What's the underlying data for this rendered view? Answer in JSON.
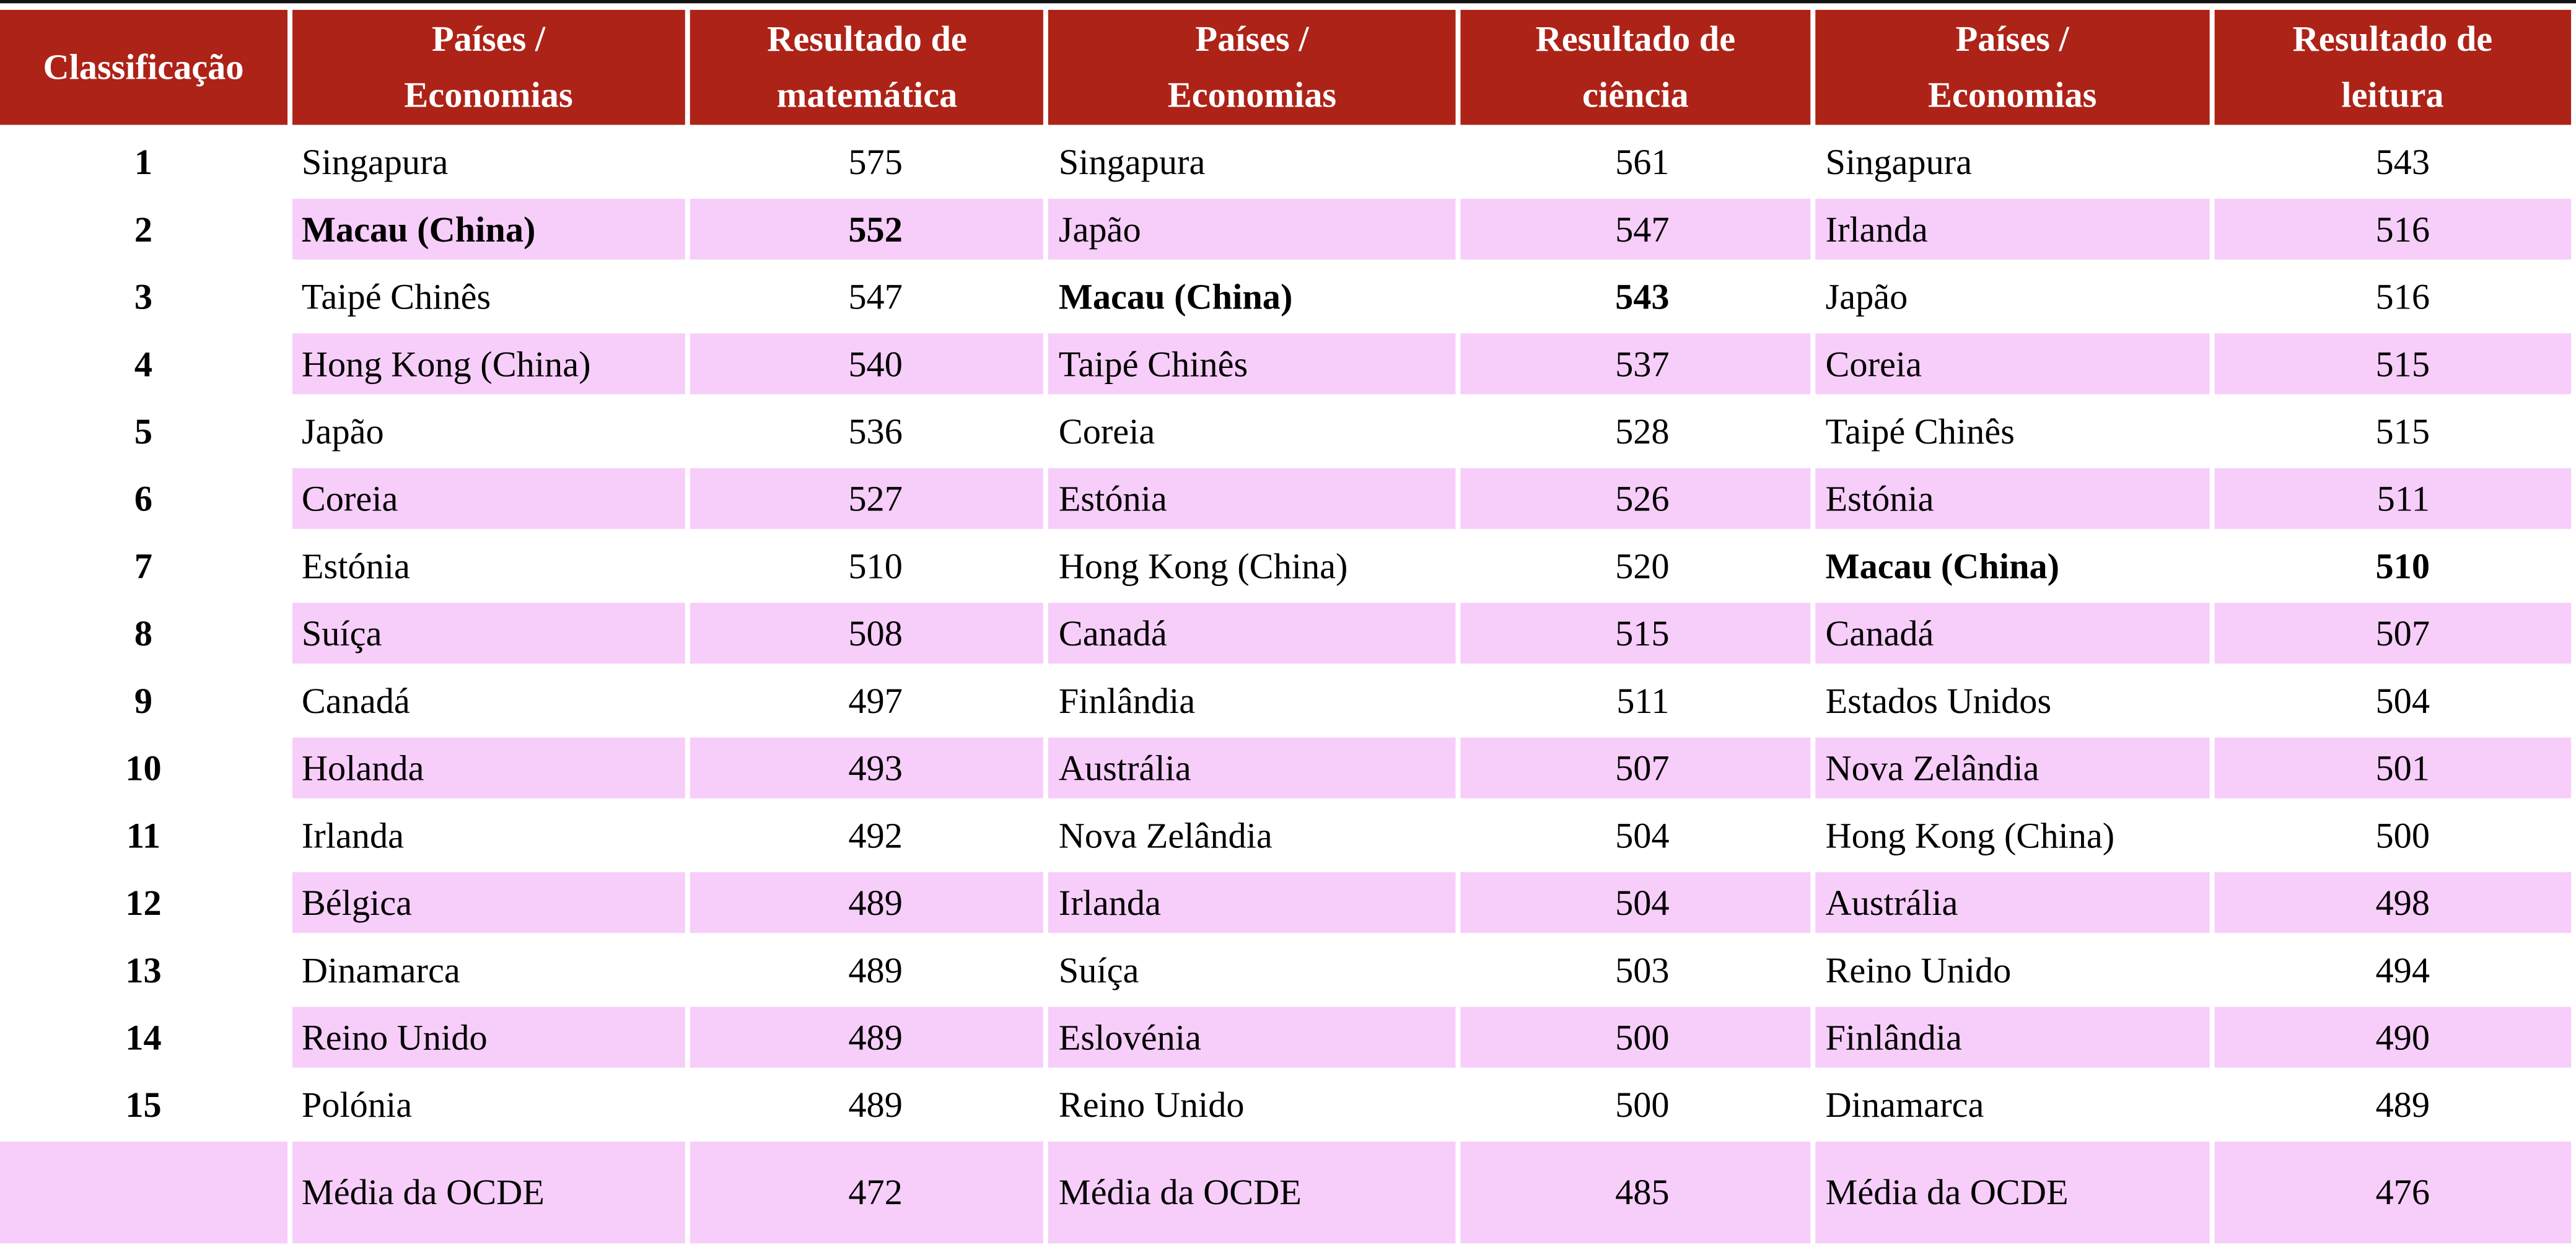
{
  "headers": [
    "Classificação",
    "Países / Economias",
    "Resultado de matemática",
    "Países / Economias",
    "Resultado de ciência",
    "Países / Economias",
    "Resultado de leitura"
  ],
  "rows": [
    {
      "rank": "1",
      "math_country": "Singapura",
      "math": "575",
      "sci_country": "Singapura",
      "sci": "561",
      "read_country": "Singapura",
      "read": "543"
    },
    {
      "rank": "2",
      "math_country": "Macau (China)",
      "math": "552",
      "sci_country": "Japão",
      "sci": "547",
      "read_country": "Irlanda",
      "read": "516"
    },
    {
      "rank": "3",
      "math_country": "Taipé Chinês",
      "math": "547",
      "sci_country": "Macau (China)",
      "sci": "543",
      "read_country": "Japão",
      "read": "516"
    },
    {
      "rank": "4",
      "math_country": "Hong Kong (China)",
      "math": "540",
      "sci_country": "Taipé Chinês",
      "sci": "537",
      "read_country": "Coreia",
      "read": "515"
    },
    {
      "rank": "5",
      "math_country": "Japão",
      "math": "536",
      "sci_country": "Coreia",
      "sci": "528",
      "read_country": "Taipé Chinês",
      "read": "515"
    },
    {
      "rank": "6",
      "math_country": "Coreia",
      "math": "527",
      "sci_country": "Estónia",
      "sci": "526",
      "read_country": "Estónia",
      "read": "511"
    },
    {
      "rank": "7",
      "math_country": "Estónia",
      "math": "510",
      "sci_country": "Hong Kong (China)",
      "sci": "520",
      "read_country": "Macau (China)",
      "read": "510"
    },
    {
      "rank": "8",
      "math_country": "Suíça",
      "math": "508",
      "sci_country": "Canadá",
      "sci": "515",
      "read_country": "Canadá",
      "read": "507"
    },
    {
      "rank": "9",
      "math_country": "Canadá",
      "math": "497",
      "sci_country": "Finlândia",
      "sci": "511",
      "read_country": "Estados Unidos",
      "read": "504"
    },
    {
      "rank": "10",
      "math_country": "Holanda",
      "math": "493",
      "sci_country": "Austrália",
      "sci": "507",
      "read_country": "Nova Zelândia",
      "read": "501"
    },
    {
      "rank": "11",
      "math_country": "Irlanda",
      "math": "492",
      "sci_country": "Nova Zelândia",
      "sci": "504",
      "read_country": "Hong Kong (China)",
      "read": "500"
    },
    {
      "rank": "12",
      "math_country": "Bélgica",
      "math": "489",
      "sci_country": "Irlanda",
      "sci": "504",
      "read_country": "Austrália",
      "read": "498"
    },
    {
      "rank": "13",
      "math_country": "Dinamarca",
      "math": "489",
      "sci_country": "Suíça",
      "sci": "503",
      "read_country": "Reino Unido",
      "read": "494"
    },
    {
      "rank": "14",
      "math_country": "Reino Unido",
      "math": "489",
      "sci_country": "Eslovénia",
      "sci": "500",
      "read_country": "Finlândia",
      "read": "490"
    },
    {
      "rank": "15",
      "math_country": "Polónia",
      "math": "489",
      "sci_country": "Reino Unido",
      "sci": "500",
      "read_country": "Dinamarca",
      "read": "489"
    }
  ],
  "average": {
    "rank": "",
    "math_country": "Média da OCDE",
    "math": "472",
    "sci_country": "Média da OCDE",
    "sci": "485",
    "read_country": "Média da OCDE",
    "read": "476"
  },
  "highlight": "Macau (China)",
  "colors": {
    "header": "#AD2318",
    "stripe": "#F7CDF9"
  }
}
